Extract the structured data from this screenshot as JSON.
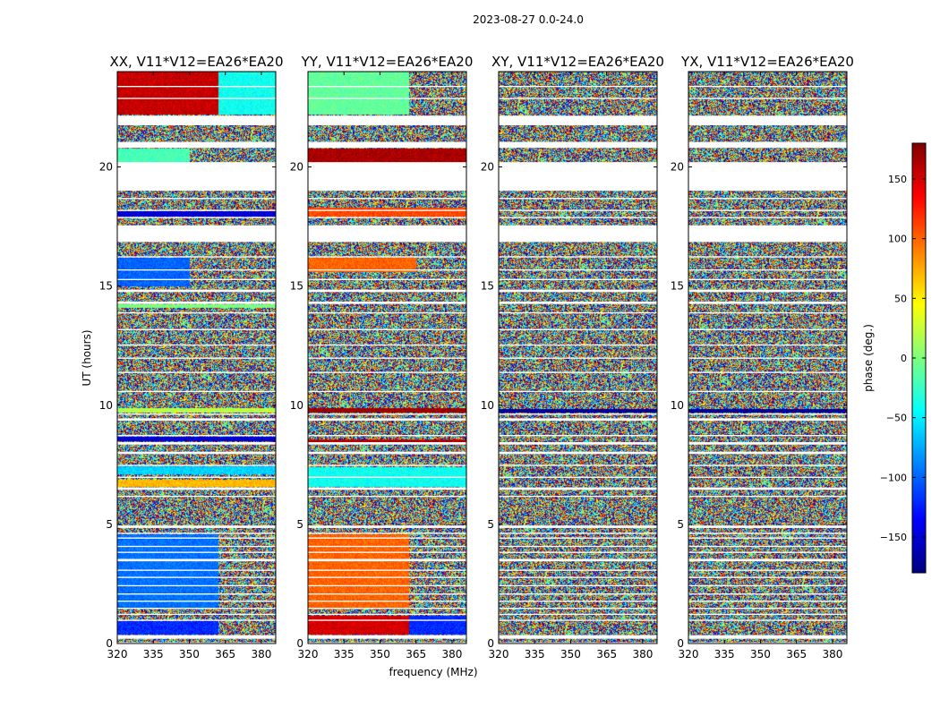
{
  "chart_data": {
    "type": "heatmap",
    "title": "2023-08-27 0.0-24.0",
    "xlabel": "frequency (MHz)",
    "ylabel": "UT (hours)",
    "xlim": [
      320,
      386
    ],
    "ylim": [
      0,
      24
    ],
    "xticks": [
      320,
      335,
      350,
      365,
      380
    ],
    "yticks": [
      0,
      5,
      10,
      15,
      20
    ],
    "colorbar": {
      "label": "phase (deg.)",
      "range": [
        -180,
        180
      ],
      "ticks": [
        150,
        100,
        50,
        0,
        -50,
        -100,
        -150
      ],
      "tick_labels": [
        "150",
        "100",
        "50",
        "0",
        "−50",
        "−100",
        "−150"
      ],
      "colormap": "jet",
      "colors": [
        "#00007f",
        "#0000ff",
        "#007fff",
        "#00ffff",
        "#7fff7f",
        "#ffff00",
        "#ff7f00",
        "#ff0000",
        "#7f0000"
      ]
    },
    "no_data_hours": [
      [
        0.0,
        0.05
      ],
      [
        0.2,
        0.35
      ],
      [
        0.95,
        1.0
      ],
      [
        1.2,
        1.25
      ],
      [
        1.45,
        1.5
      ],
      [
        1.75,
        1.8
      ],
      [
        2.05,
        2.1
      ],
      [
        2.4,
        2.45
      ],
      [
        2.75,
        2.8
      ],
      [
        3.05,
        3.1
      ],
      [
        3.45,
        3.55
      ],
      [
        3.8,
        3.85
      ],
      [
        4.05,
        4.1
      ],
      [
        4.4,
        4.45
      ],
      [
        4.6,
        4.65
      ],
      [
        4.85,
        4.95
      ],
      [
        6.15,
        6.2
      ],
      [
        6.45,
        6.55
      ],
      [
        6.95,
        7.0
      ],
      [
        7.45,
        7.5
      ],
      [
        7.95,
        8.05
      ],
      [
        8.35,
        8.45
      ],
      [
        8.7,
        8.75
      ],
      [
        9.35,
        9.45
      ],
      [
        9.6,
        9.65
      ],
      [
        10.55,
        10.6
      ],
      [
        11.35,
        11.4
      ],
      [
        11.95,
        12.0
      ],
      [
        12.5,
        12.55
      ],
      [
        13.15,
        13.2
      ],
      [
        13.85,
        13.9
      ],
      [
        14.25,
        14.35
      ],
      [
        14.75,
        14.85
      ],
      [
        15.25,
        15.3
      ],
      [
        15.65,
        15.7
      ],
      [
        16.2,
        16.25
      ],
      [
        16.85,
        17.55
      ],
      [
        17.85,
        17.9
      ],
      [
        18.15,
        18.2
      ],
      [
        18.65,
        18.7
      ],
      [
        19.0,
        20.2
      ],
      [
        20.8,
        21.05
      ],
      [
        21.75,
        22.15
      ],
      [
        22.85,
        22.9
      ],
      [
        23.35,
        23.4
      ]
    ],
    "series": [
      {
        "name": "XX, V11*V12=EA26*EA20",
        "coherent_bands": [
          {
            "t": [
              22.2,
              24.0
            ],
            "f": [
              320,
              362
            ],
            "phase": 155
          },
          {
            "t": [
              22.2,
              22.7
            ],
            "f": [
              320,
              362
            ],
            "phase": -150
          },
          {
            "t": [
              23.8,
              24.0
            ],
            "f": [
              320,
              362
            ],
            "phase": 120
          },
          {
            "t": [
              22.2,
              24.0
            ],
            "f": [
              362,
              386
            ],
            "phase": -40
          },
          {
            "t": [
              20.2,
              20.8
            ],
            "f": [
              320,
              350
            ],
            "phase": -20
          },
          {
            "t": [
              17.95,
              18.15
            ],
            "f": [
              320,
              386
            ],
            "phase": -150
          },
          {
            "t": [
              15.0,
              16.2
            ],
            "f": [
              320,
              350
            ],
            "phase": -100
          },
          {
            "t": [
              14.1,
              14.25
            ],
            "f": [
              320,
              386
            ],
            "phase": 0
          },
          {
            "t": [
              9.7,
              9.9
            ],
            "f": [
              320,
              386
            ],
            "phase": 20
          },
          {
            "t": [
              8.5,
              8.7
            ],
            "f": [
              320,
              386
            ],
            "phase": -150
          },
          {
            "t": [
              7.1,
              7.45
            ],
            "f": [
              320,
              386
            ],
            "phase": -60
          },
          {
            "t": [
              6.6,
              6.9
            ],
            "f": [
              320,
              386
            ],
            "phase": 70
          },
          {
            "t": [
              1.5,
              4.6
            ],
            "f": [
              320,
              362
            ],
            "phase": -95
          },
          {
            "t": [
              0.4,
              0.95
            ],
            "f": [
              320,
              362
            ],
            "phase": -120
          },
          {
            "t": [
              0.7,
              0.85
            ],
            "f": [
              320,
              362
            ],
            "phase": 40
          }
        ]
      },
      {
        "name": "YY, V11*V12=EA26*EA20",
        "coherent_bands": [
          {
            "t": [
              22.2,
              24.0
            ],
            "f": [
              320,
              362
            ],
            "phase": -10
          },
          {
            "t": [
              22.2,
              22.6
            ],
            "f": [
              320,
              362
            ],
            "phase": 40
          },
          {
            "t": [
              23.5,
              24.0
            ],
            "f": [
              320,
              362
            ],
            "phase": 20
          },
          {
            "t": [
              20.2,
              20.8
            ],
            "f": [
              320,
              386
            ],
            "phase": 165
          },
          {
            "t": [
              17.95,
              18.3
            ],
            "f": [
              320,
              386
            ],
            "phase": 110
          },
          {
            "t": [
              15.6,
              16.2
            ],
            "f": [
              320,
              365
            ],
            "phase": 100
          },
          {
            "t": [
              9.7,
              9.9
            ],
            "f": [
              320,
              386
            ],
            "phase": 170
          },
          {
            "t": [
              8.45,
              8.6
            ],
            "f": [
              320,
              386
            ],
            "phase": 160
          },
          {
            "t": [
              6.6,
              7.4
            ],
            "f": [
              320,
              386
            ],
            "phase": -40
          },
          {
            "t": [
              1.5,
              4.6
            ],
            "f": [
              320,
              362
            ],
            "phase": 100
          },
          {
            "t": [
              0.4,
              1.2
            ],
            "f": [
              320,
              362
            ],
            "phase": 150
          },
          {
            "t": [
              0.4,
              1.2
            ],
            "f": [
              362,
              386
            ],
            "phase": -120
          }
        ]
      },
      {
        "name": "XY, V11*V12=EA26*EA20",
        "coherent_bands": [
          {
            "t": [
              9.7,
              9.85
            ],
            "f": [
              320,
              386
            ],
            "phase": -170
          }
        ]
      },
      {
        "name": "YX, V11*V12=EA26*EA20",
        "coherent_bands": [
          {
            "t": [
              9.7,
              9.85
            ],
            "f": [
              320,
              386
            ],
            "phase": -170
          }
        ]
      }
    ]
  }
}
